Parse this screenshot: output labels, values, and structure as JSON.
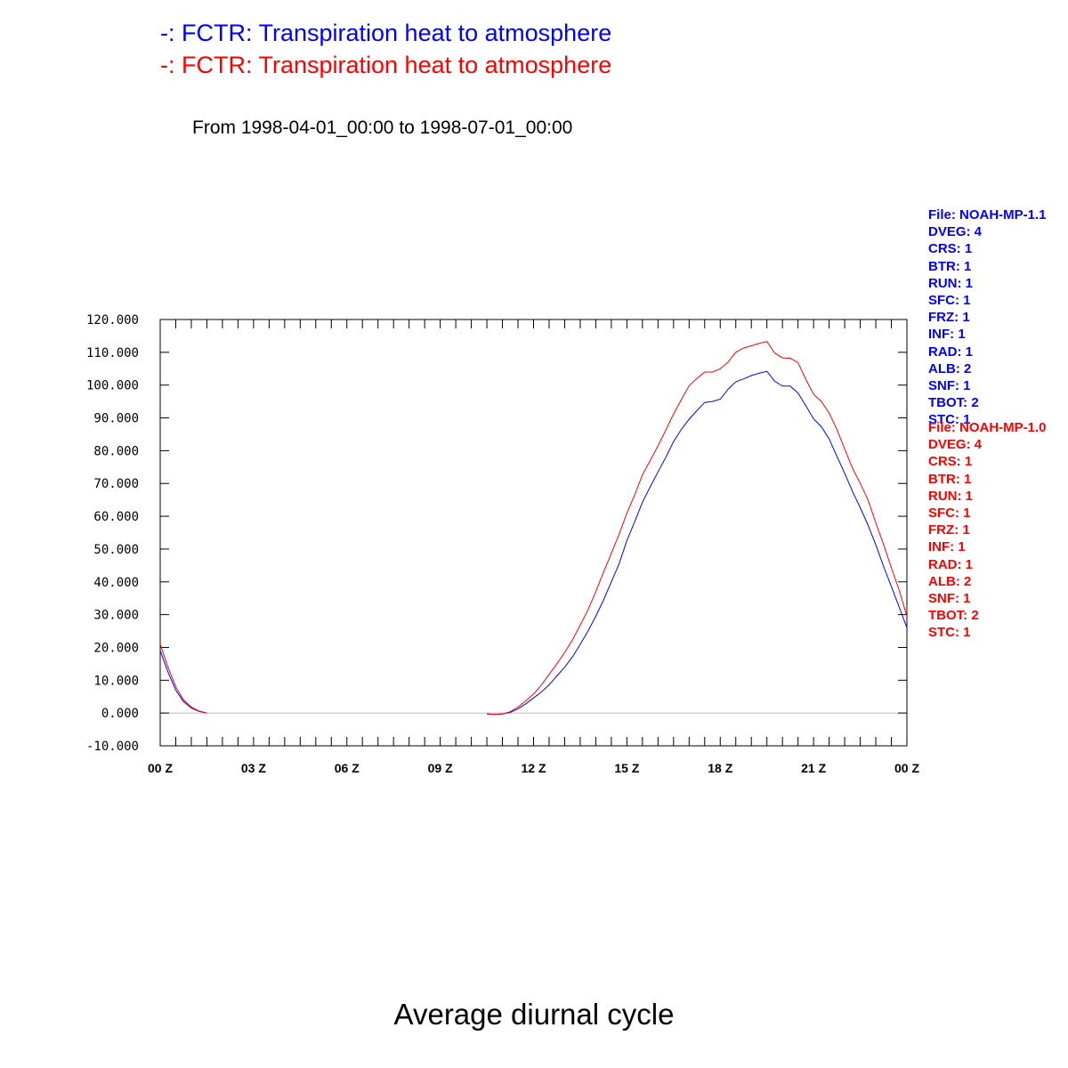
{
  "legend": {
    "line1": "-: FCTR: Transpiration heat to atmosphere",
    "line2": "-: FCTR: Transpiration heat to atmosphere",
    "color1": "#0000ff",
    "color2": "#ff0000"
  },
  "subtitle": "From 1998-04-01_00:00 to 1998-07-01_00:00",
  "footer_title": "Average diurnal cycle",
  "metadata": {
    "blue": [
      "File: NOAH-MP-1.1",
      "DVEG: 4",
      "CRS: 1",
      "BTR: 1",
      "RUN: 1",
      "SFC: 1",
      "FRZ: 1",
      "INF: 1",
      "RAD: 1",
      "ALB: 2",
      "SNF: 1",
      "TBOT: 2",
      "STC: 1"
    ],
    "red": [
      "File: NOAH-MP-1.0",
      "DVEG: 4",
      "CRS: 1",
      "BTR: 1",
      "RUN: 1",
      "SFC: 1",
      "FRZ: 1",
      "INF: 1",
      "RAD: 1",
      "ALB: 2",
      "SNF: 1",
      "TBOT: 2",
      "STC: 1"
    ]
  },
  "chart_data": {
    "type": "line",
    "title": "",
    "xlabel": "",
    "ylabel": "",
    "xlim": [
      0,
      24
    ],
    "ylim": [
      -10,
      120
    ],
    "x_ticks": [
      0,
      3,
      6,
      9,
      12,
      15,
      18,
      21,
      24
    ],
    "x_tick_labels": [
      "00 Z",
      "03 Z",
      "06 Z",
      "09 Z",
      "12 Z",
      "15 Z",
      "18 Z",
      "21 Z",
      "00 Z"
    ],
    "y_ticks": [
      -10,
      0,
      10,
      20,
      30,
      40,
      50,
      60,
      70,
      80,
      90,
      100,
      110,
      120
    ],
    "y_tick_labels": [
      "-10.000",
      "0.000",
      "10.000",
      "20.000",
      "30.000",
      "40.000",
      "50.000",
      "60.000",
      "70.000",
      "80.000",
      "90.000",
      "100.000",
      "110.000",
      "120.000"
    ],
    "zero_line": true,
    "series": [
      {
        "color": "#0000ff",
        "segments": [
          {
            "x": [
              0,
              0.25,
              0.5,
              0.75,
              1.0,
              1.25,
              1.5
            ],
            "y": [
              19,
              12.5,
              7,
              3.5,
              1.5,
              0.5,
              0
            ]
          },
          {
            "x": [
              10.5,
              10.75,
              11.0,
              11.25,
              11.5,
              11.75,
              12.0,
              12.25,
              12.5,
              12.75,
              13.0,
              13.25,
              13.5,
              13.75,
              14.0,
              14.25,
              14.5,
              14.75,
              15.0,
              15.25,
              15.5,
              15.75,
              16.0,
              16.25,
              16.5,
              16.75,
              17.0,
              17.25,
              17.5,
              17.75,
              18.0,
              18.25,
              18.5,
              18.75,
              19.0,
              19.25,
              19.5,
              19.75,
              20.0,
              20.25,
              20.5,
              20.75,
              21.0,
              21.25,
              21.5,
              21.75,
              22.0,
              22.25,
              22.5,
              22.75,
              23.0,
              23.25,
              23.5,
              23.75,
              24.0
            ],
            "y": [
              -0.3,
              -0.4,
              -0.3,
              0.2,
              1.3,
              2.8,
              4.6,
              6.4,
              8.6,
              11.3,
              14.0,
              17.1,
              20.9,
              25.0,
              29.5,
              34.5,
              40.0,
              45.5,
              52.6,
              58.3,
              64.3,
              69.0,
              73.5,
              78.0,
              82.8,
              86.5,
              89.6,
              92.2,
              94.7,
              95.0,
              95.7,
              98.7,
              101.0,
              101.9,
              102.9,
              103.6,
              104.2,
              101.2,
              99.7,
              99.7,
              97.6,
              93.7,
              89.7,
              87.3,
              83.6,
              78.3,
              73.1,
              67.6,
              62.6,
              57.3,
              51.3,
              44.7,
              38.6,
              32.3,
              26.0
            ]
          }
        ]
      },
      {
        "color": "#ff0000",
        "segments": [
          {
            "x": [
              0,
              0.25,
              0.5,
              0.75,
              1.0,
              1.25,
              1.5
            ],
            "y": [
              21,
              14,
              8,
              4,
              1.8,
              0.6,
              0
            ]
          },
          {
            "x": [
              10.5,
              10.75,
              11.0,
              11.25,
              11.5,
              11.75,
              12.0,
              12.25,
              12.5,
              12.75,
              13.0,
              13.25,
              13.5,
              13.75,
              14.0,
              14.25,
              14.5,
              14.75,
              15.0,
              15.25,
              15.5,
              15.75,
              16.0,
              16.25,
              16.5,
              16.75,
              17.0,
              17.25,
              17.5,
              17.75,
              18.0,
              18.25,
              18.5,
              18.75,
              19.0,
              19.25,
              19.5,
              19.75,
              20.0,
              20.25,
              20.5,
              20.75,
              21.0,
              21.25,
              21.5,
              21.75,
              22.0,
              22.25,
              22.5,
              22.75,
              23.0,
              23.25,
              23.5,
              23.75,
              24.0
            ],
            "y": [
              -0.3,
              -0.4,
              -0.3,
              0.4,
              1.8,
              3.7,
              5.8,
              8.5,
              11.8,
              15.0,
              18.5,
              22.3,
              26.8,
              31.5,
              37.0,
              43.0,
              48.7,
              54.5,
              61.0,
              66.5,
              72.7,
              77.0,
              81.5,
              86.3,
              91.2,
              95.6,
              99.8,
              102.0,
              104.0,
              104.0,
              105.0,
              107.0,
              110.0,
              111.3,
              112.0,
              112.7,
              113.3,
              109.8,
              108.3,
              108.2,
              106.9,
              101.8,
              97.2,
              95.0,
              91.5,
              86.5,
              80.5,
              74.7,
              70.0,
              65.0,
              58.0,
              51.4,
              44.3,
              37.5,
              29.5
            ]
          }
        ]
      }
    ]
  }
}
